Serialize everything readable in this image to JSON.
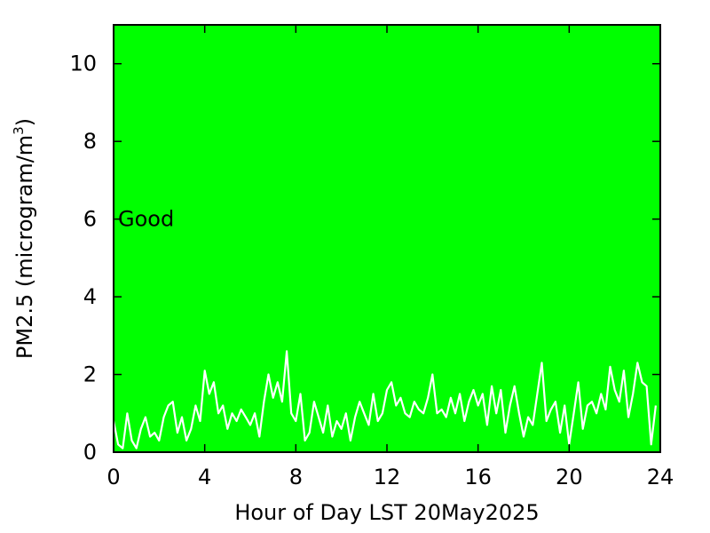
{
  "chart_data": {
    "type": "line",
    "xlabel": "Hour of Day LST 20May2025",
    "ylabel_main": "PM2.5 (microgram/m",
    "ylabel_sup": "3",
    "ylabel_close": ")",
    "xlim": [
      0,
      24
    ],
    "ylim": [
      0,
      11
    ],
    "x_ticks": [
      0,
      4,
      8,
      12,
      16,
      20,
      24
    ],
    "y_ticks": [
      0,
      2,
      4,
      6,
      8,
      10
    ],
    "annotation": "Good",
    "grid": false,
    "legend": "none",
    "background_color": "#00ff00",
    "line_color": "#ffffff",
    "series": [
      {
        "x": [
          0.0,
          0.2,
          0.4,
          0.6,
          0.8,
          1.0,
          1.2,
          1.4,
          1.6,
          1.8,
          2.0,
          2.2,
          2.4,
          2.6,
          2.8,
          3.0,
          3.2,
          3.4,
          3.6,
          3.8,
          4.0,
          4.2,
          4.4,
          4.6,
          4.8,
          5.0,
          5.2,
          5.4,
          5.6,
          5.8,
          6.0,
          6.2,
          6.4,
          6.6,
          6.8,
          7.0,
          7.2,
          7.4,
          7.6,
          7.8,
          8.0,
          8.2,
          8.4,
          8.6,
          8.8,
          9.0,
          9.2,
          9.4,
          9.6,
          9.8,
          10.0,
          10.2,
          10.4,
          10.6,
          10.8,
          11.0,
          11.2,
          11.4,
          11.6,
          11.8,
          12.0,
          12.2,
          12.4,
          12.6,
          12.8,
          13.0,
          13.2,
          13.4,
          13.6,
          13.8,
          14.0,
          14.2,
          14.4,
          14.6,
          14.8,
          15.0,
          15.2,
          15.4,
          15.6,
          15.8,
          16.0,
          16.2,
          16.4,
          16.6,
          16.8,
          17.0,
          17.2,
          17.4,
          17.6,
          17.8,
          18.0,
          18.2,
          18.4,
          18.6,
          18.8,
          19.0,
          19.2,
          19.4,
          19.6,
          19.8,
          20.0,
          20.2,
          20.4,
          20.6,
          20.8,
          21.0,
          21.2,
          21.4,
          21.6,
          21.8,
          22.0,
          22.2,
          22.4,
          22.6,
          22.8,
          23.0,
          23.2,
          23.4,
          23.6,
          23.8
        ],
        "values": [
          0.8,
          0.2,
          0.1,
          1.0,
          0.3,
          0.1,
          0.6,
          0.9,
          0.4,
          0.5,
          0.3,
          0.9,
          1.2,
          1.3,
          0.5,
          0.9,
          0.3,
          0.6,
          1.2,
          0.8,
          2.1,
          1.5,
          1.8,
          1.0,
          1.2,
          0.6,
          1.0,
          0.8,
          1.1,
          0.9,
          0.7,
          1.0,
          0.4,
          1.3,
          2.0,
          1.4,
          1.8,
          1.3,
          2.6,
          1.0,
          0.8,
          1.5,
          0.3,
          0.5,
          1.3,
          0.9,
          0.5,
          1.2,
          0.4,
          0.8,
          0.6,
          1.0,
          0.3,
          0.9,
          1.3,
          1.0,
          0.7,
          1.5,
          0.8,
          1.0,
          1.6,
          1.8,
          1.2,
          1.4,
          1.0,
          0.9,
          1.3,
          1.1,
          1.0,
          1.4,
          2.0,
          1.0,
          1.1,
          0.9,
          1.4,
          1.0,
          1.5,
          0.8,
          1.3,
          1.6,
          1.2,
          1.5,
          0.7,
          1.7,
          1.0,
          1.6,
          0.5,
          1.2,
          1.7,
          1.0,
          0.4,
          0.9,
          0.7,
          1.5,
          2.3,
          0.8,
          1.1,
          1.3,
          0.5,
          1.2,
          0.2,
          1.0,
          1.8,
          0.6,
          1.2,
          1.3,
          1.0,
          1.5,
          1.1,
          2.2,
          1.6,
          1.3,
          2.1,
          0.9,
          1.5,
          2.3,
          1.8,
          1.7,
          0.2,
          1.2
        ]
      }
    ]
  }
}
